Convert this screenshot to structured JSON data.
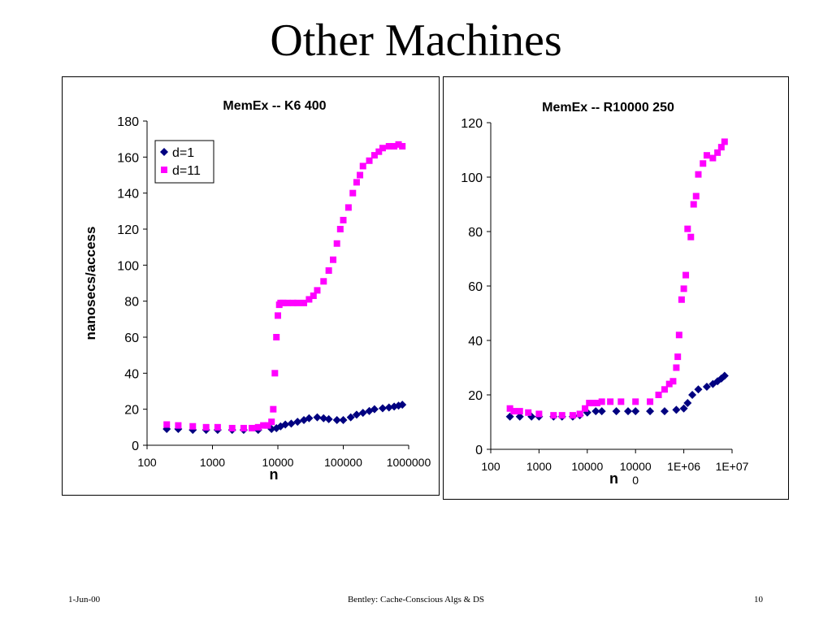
{
  "slide": {
    "title": "Other Machines",
    "footer_left": "1-Jun-00",
    "footer_center": "Bentley: Cache-Conscious Algs & DS",
    "footer_right": "10"
  },
  "colors": {
    "series_d1": "#000080",
    "series_d11": "#ff00ff",
    "background": "#ffffff",
    "axis": "#000000"
  },
  "chart_data": [
    {
      "type": "scatter",
      "title": "MemEx -- K6 400",
      "xlabel": "n",
      "ylabel": "nanosecs/access",
      "xscale": "log",
      "xlim": [
        100,
        1000000
      ],
      "ylim": [
        0,
        180
      ],
      "yticks": [
        0,
        20,
        40,
        60,
        80,
        100,
        120,
        140,
        160,
        180
      ],
      "ytick_labels": [
        "0",
        "20",
        "40",
        "60",
        "80",
        "100",
        "120",
        "140",
        "160",
        "180"
      ],
      "xticks": [
        100,
        1000,
        10000,
        100000,
        1000000
      ],
      "xtick_labels": [
        "100",
        "1000",
        "10000",
        "100000",
        "1000000"
      ],
      "legend": "top-left",
      "series": [
        {
          "name": "d=1",
          "marker": "diamond",
          "color": "#000080",
          "x": [
            200,
            300,
            500,
            800,
            1200,
            2000,
            3000,
            5000,
            8000,
            9500,
            11000,
            13000,
            16000,
            20000,
            25000,
            30000,
            40000,
            50000,
            60000,
            80000,
            100000,
            130000,
            160000,
            200000,
            250000,
            300000,
            400000,
            500000,
            600000,
            700000,
            800000
          ],
          "y": [
            9,
            9,
            8.5,
            8.5,
            8.5,
            8.5,
            8.5,
            8.5,
            9,
            9.5,
            10.5,
            11.5,
            12,
            13,
            14,
            15,
            15.5,
            15,
            14.5,
            14,
            14,
            15.5,
            17,
            18,
            19,
            20,
            20.5,
            21,
            21.5,
            22,
            22.5
          ]
        },
        {
          "name": "d=11",
          "marker": "square",
          "color": "#ff00ff",
          "x": [
            200,
            300,
            500,
            800,
            1200,
            2000,
            3000,
            4000,
            5000,
            6000,
            7000,
            8000,
            8500,
            9000,
            9500,
            10000,
            10500,
            11000,
            12000,
            14000,
            17000,
            20000,
            25000,
            30000,
            35000,
            40000,
            50000,
            60000,
            70000,
            80000,
            90000,
            100000,
            120000,
            140000,
            160000,
            180000,
            200000,
            250000,
            300000,
            350000,
            400000,
            500000,
            600000,
            700000,
            800000
          ],
          "y": [
            11.5,
            11,
            10.5,
            10,
            10,
            9.5,
            9.5,
            9.5,
            10,
            11,
            11,
            13,
            20,
            40,
            60,
            72,
            78,
            79,
            79,
            79,
            79,
            79,
            79,
            81,
            83,
            86,
            91,
            97,
            103,
            112,
            120,
            125,
            132,
            140,
            146,
            150,
            155,
            158,
            161,
            163,
            165,
            166,
            166,
            167,
            166
          ]
        }
      ]
    },
    {
      "type": "scatter",
      "title": "MemEx -- R10000 250",
      "xlabel": "n",
      "ylabel": "",
      "xscale": "log",
      "xlim": [
        100,
        10000000
      ],
      "ylim": [
        0,
        120
      ],
      "yticks": [
        0,
        20,
        40,
        60,
        80,
        100,
        120
      ],
      "ytick_labels": [
        "0",
        "20",
        "40",
        "60",
        "80",
        "100",
        "120"
      ],
      "xticks": [
        100,
        1000,
        10000,
        100000,
        1000000,
        10000000
      ],
      "xtick_labels": [
        "100",
        "1000",
        "10000",
        "10000\n0",
        "1E+06",
        "1E+07"
      ],
      "legend": "none",
      "series": [
        {
          "name": "d=1",
          "marker": "diamond",
          "color": "#000080",
          "x": [
            250,
            400,
            700,
            1000,
            2000,
            3000,
            5000,
            7000,
            10000,
            15000,
            20000,
            40000,
            70000,
            100000,
            200000,
            400000,
            700000,
            1000000,
            1200000,
            1500000,
            2000000,
            3000000,
            4000000,
            5000000,
            6000000,
            7000000
          ],
          "y": [
            12,
            12,
            12,
            12,
            12,
            12,
            12,
            12.5,
            13.5,
            14,
            14,
            14,
            14,
            14,
            14,
            14,
            14.5,
            15,
            17,
            20,
            22,
            23,
            24,
            25,
            26,
            27
          ]
        },
        {
          "name": "d=11",
          "marker": "square",
          "color": "#ff00ff",
          "x": [
            250,
            300,
            400,
            600,
            1000,
            2000,
            3000,
            5000,
            7000,
            9000,
            11000,
            13000,
            16000,
            20000,
            30000,
            50000,
            100000,
            200000,
            300000,
            400000,
            500000,
            600000,
            700000,
            750000,
            800000,
            900000,
            1000000,
            1100000,
            1200000,
            1400000,
            1600000,
            1800000,
            2000000,
            2500000,
            3000000,
            4000000,
            5000000,
            6000000,
            7000000
          ],
          "y": [
            15,
            14,
            14,
            13.5,
            13,
            12.5,
            12.5,
            12.5,
            13,
            15,
            17,
            17,
            17,
            17.5,
            17.5,
            17.5,
            17.5,
            17.5,
            20,
            22,
            24,
            25,
            30,
            34,
            42,
            55,
            59,
            64,
            81,
            78,
            90,
            93,
            101,
            105,
            108,
            107,
            109,
            111,
            113
          ]
        }
      ]
    }
  ]
}
